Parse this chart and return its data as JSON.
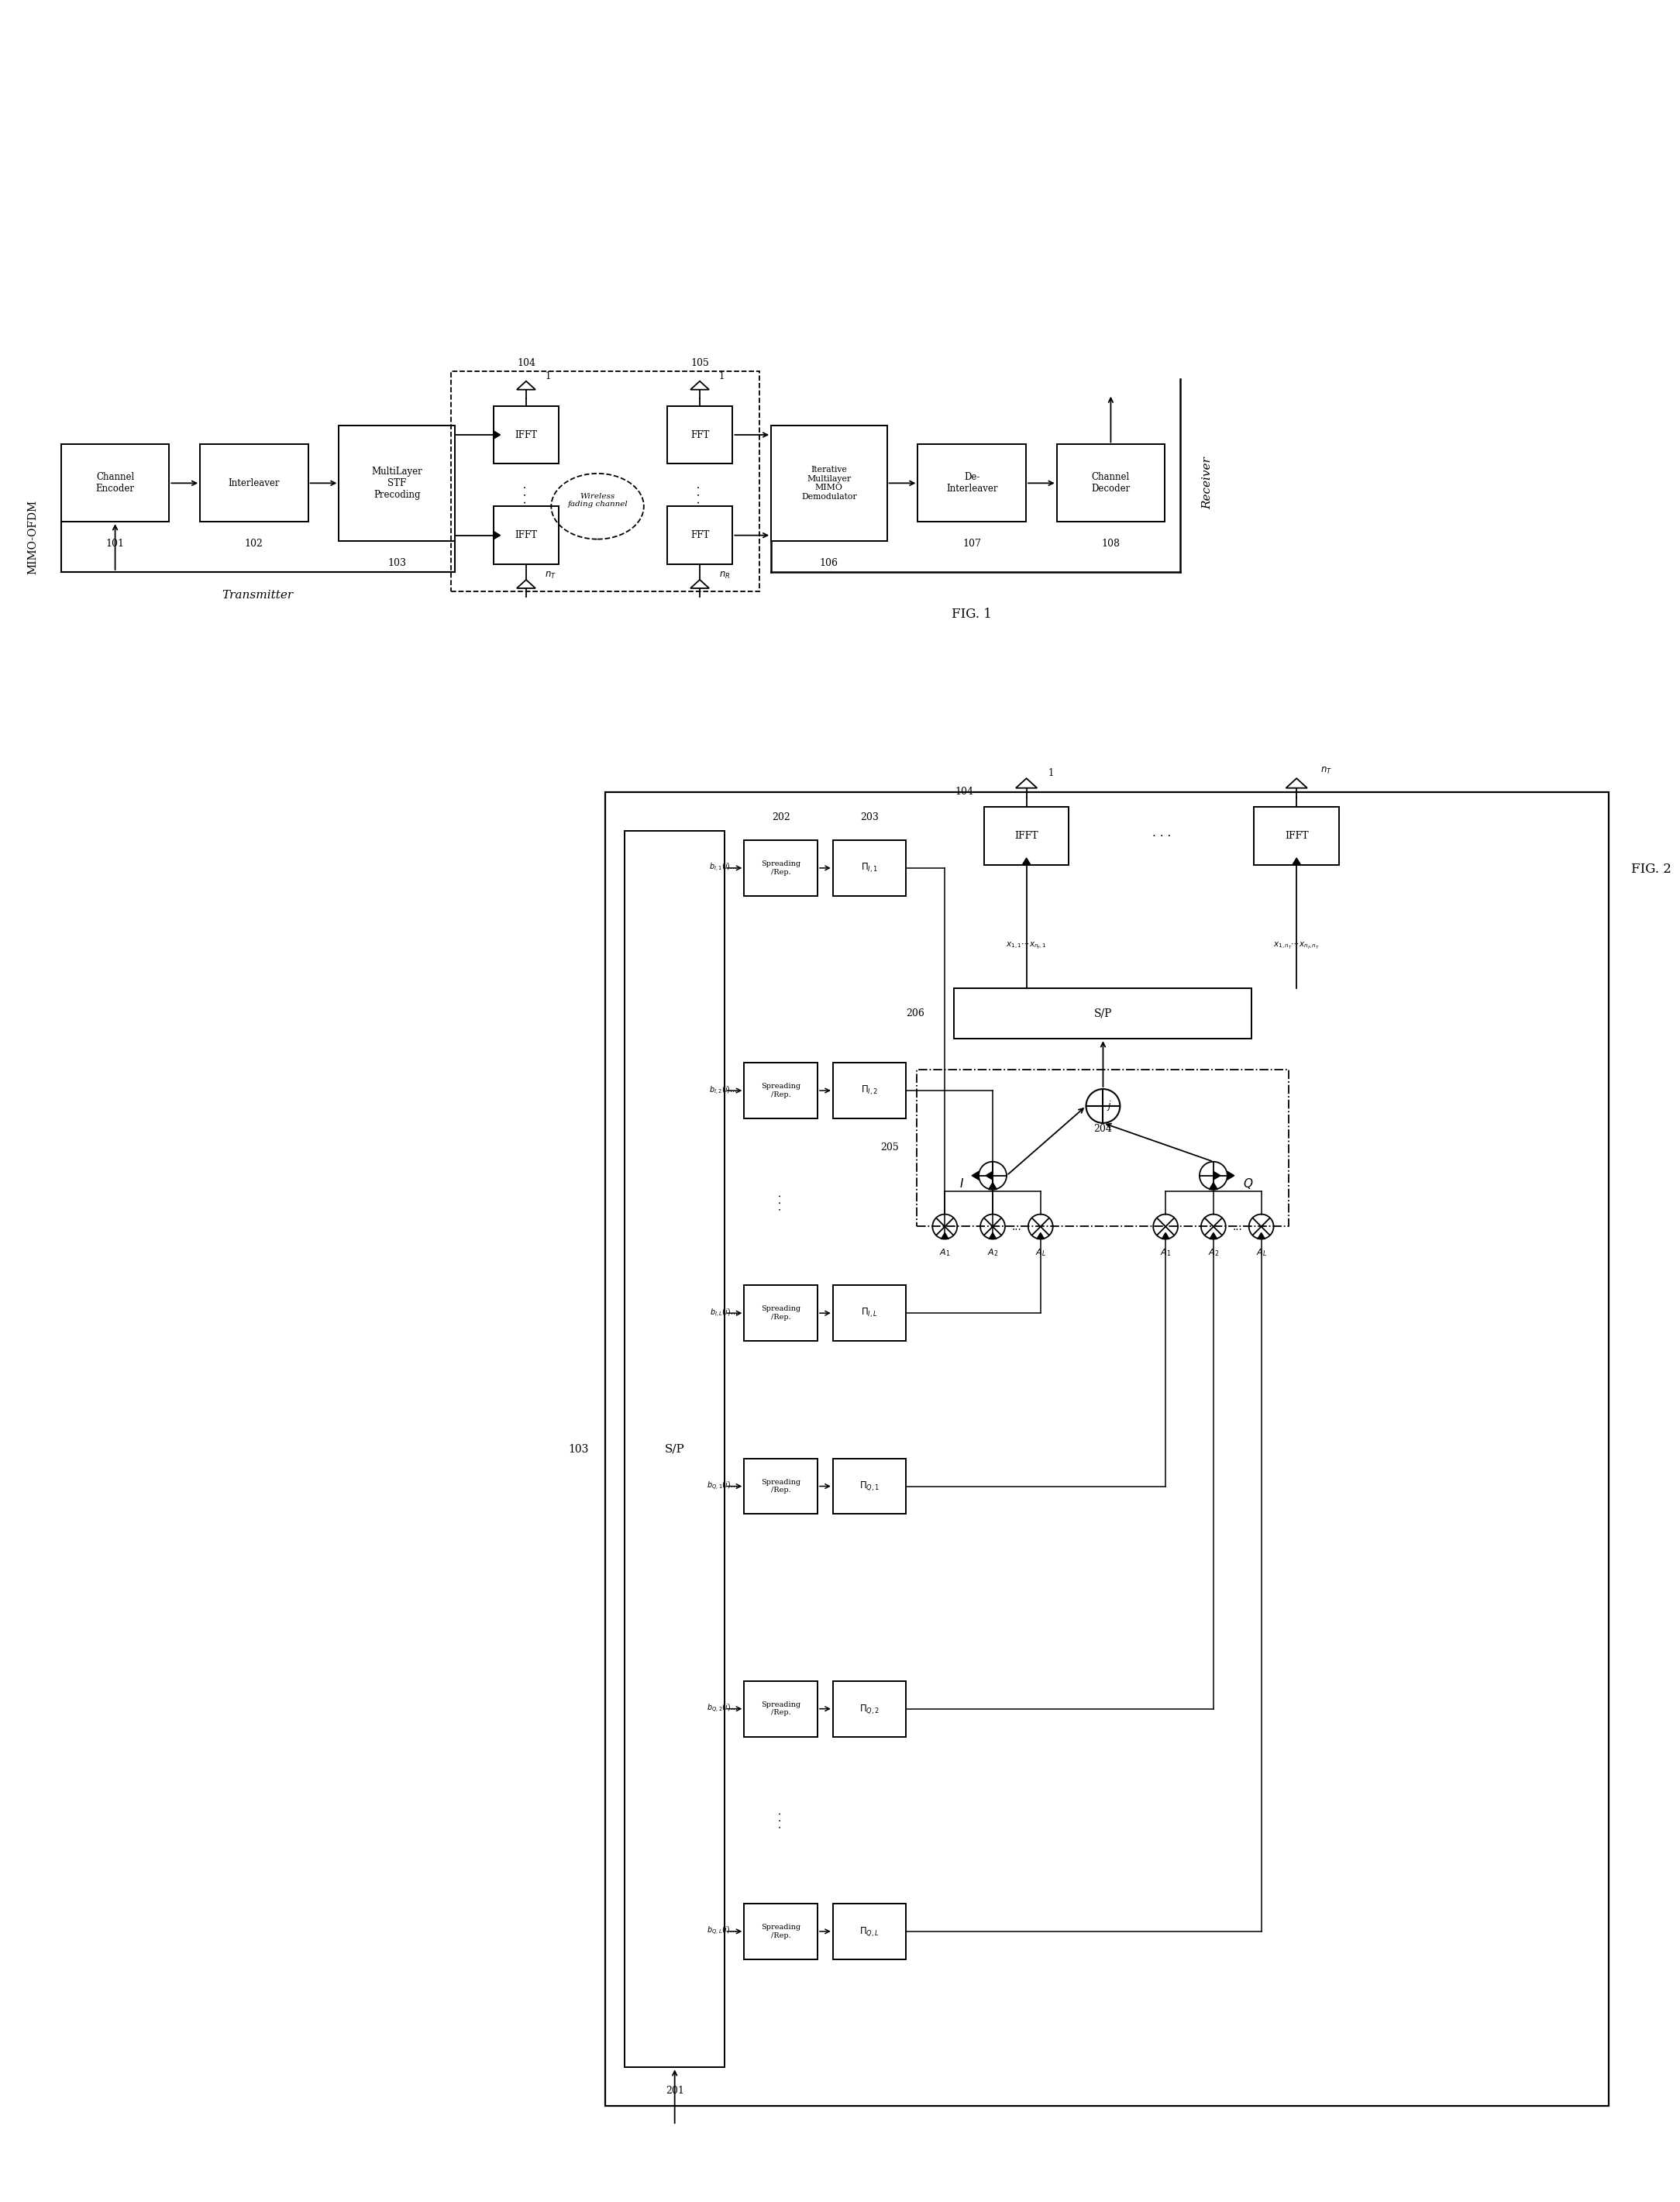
{
  "fig_width": 21.68,
  "fig_height": 28.41,
  "bg_color": "#ffffff",
  "lc": "#000000",
  "fig1_label": "FIG. 1",
  "fig2_label": "FIG. 2",
  "mimo_label": "MIMO-OFDM",
  "transmitter_label": "Transmitter",
  "receiver_label": "Receiver"
}
